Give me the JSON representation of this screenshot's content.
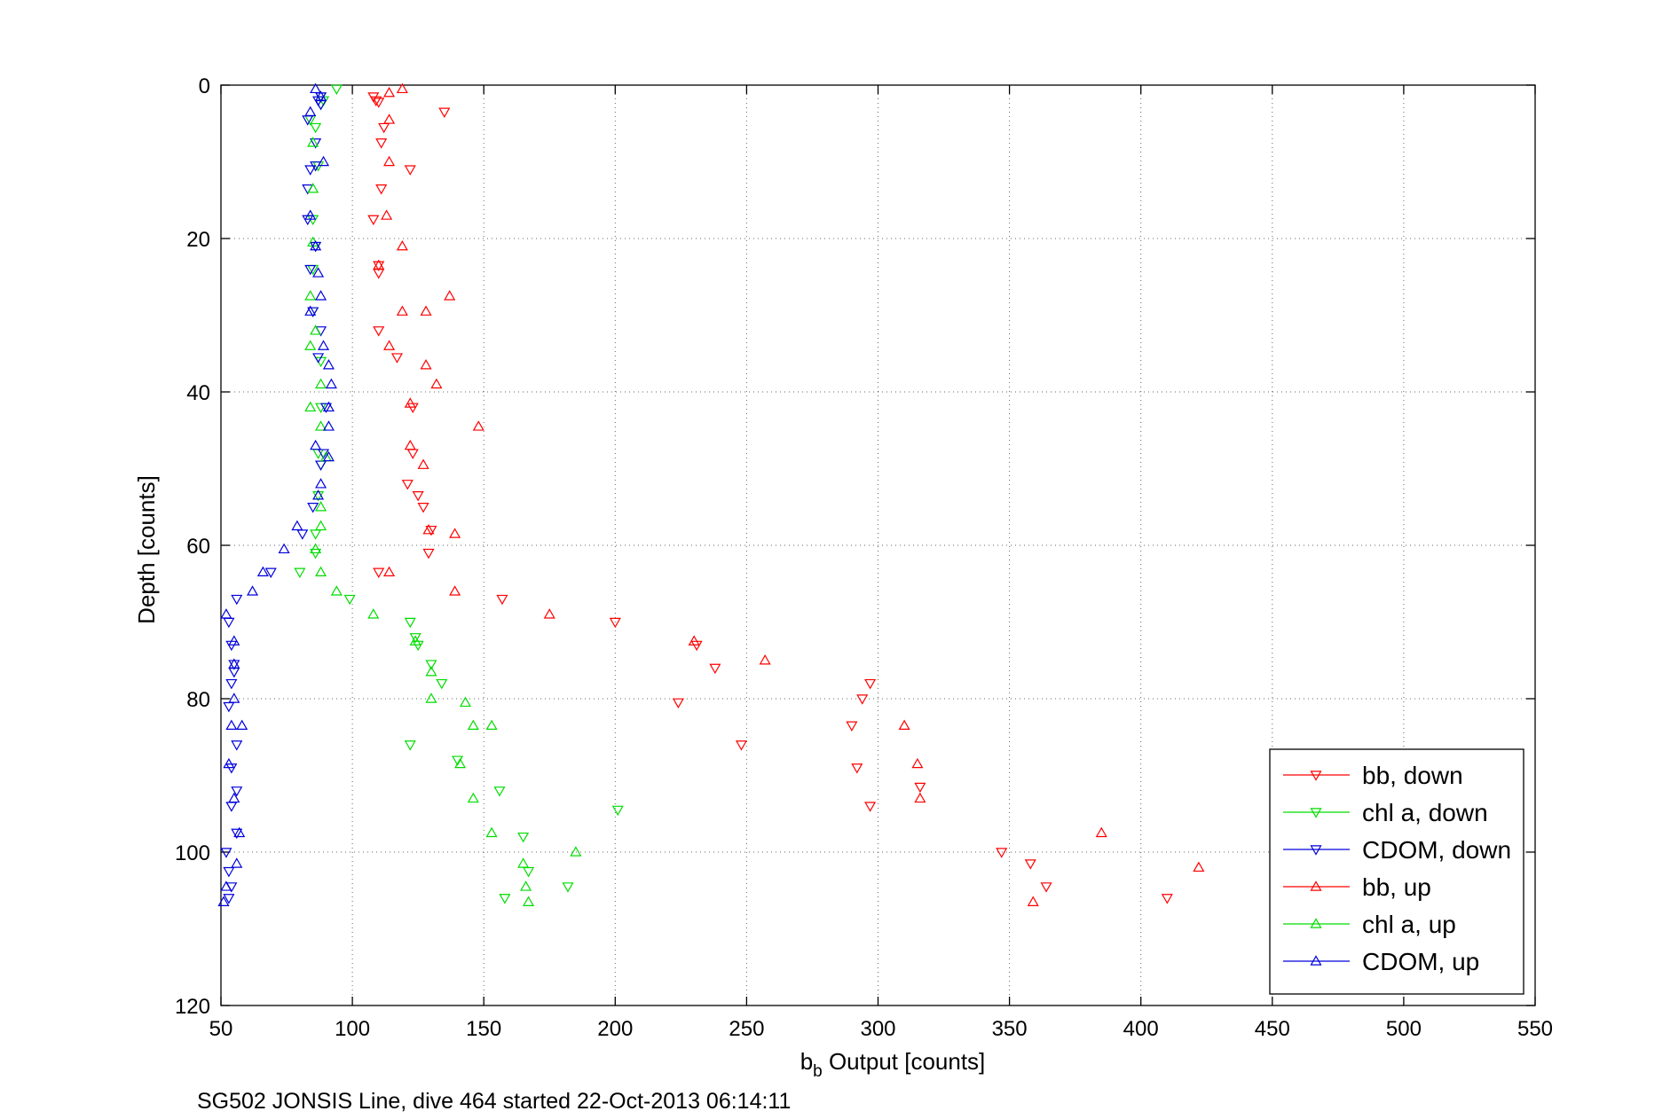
{
  "chart_data": {
    "type": "scatter",
    "xlabel_main": "b",
    "xlabel_sub": "b",
    "xlabel_rest": " Output [counts]",
    "ylabel": "Depth [counts]",
    "footer": "SG502 JONSIS Line, dive 464 started 22-Oct-2013 06:14:11",
    "xlim": [
      50,
      550
    ],
    "ylim": [
      0,
      120
    ],
    "y_reversed": true,
    "grid": true,
    "legend_position": "lower-right",
    "x_ticks": [
      "50",
      "100",
      "150",
      "200",
      "250",
      "300",
      "350",
      "400",
      "450",
      "500",
      "550"
    ],
    "y_ticks": [
      "0",
      "20",
      "40",
      "60",
      "80",
      "100",
      "120"
    ],
    "series": [
      {
        "name": "bb, down",
        "color": "#ff0000",
        "marker": "triangle-down",
        "points": [
          [
            108,
            1.5
          ],
          [
            109,
            2
          ],
          [
            110,
            2.2
          ],
          [
            135,
            3.5
          ],
          [
            112,
            5.5
          ],
          [
            111,
            7.5
          ],
          [
            122,
            11
          ],
          [
            111,
            13.5
          ],
          [
            108,
            17.5
          ],
          [
            110,
            23.5
          ],
          [
            110,
            24.5
          ],
          [
            110,
            32
          ],
          [
            117,
            35.5
          ],
          [
            123,
            42
          ],
          [
            123,
            48
          ],
          [
            121,
            52
          ],
          [
            125,
            53.5
          ],
          [
            127,
            55
          ],
          [
            130,
            58
          ],
          [
            129,
            61
          ],
          [
            110,
            63.5
          ],
          [
            157,
            67
          ],
          [
            200,
            70
          ],
          [
            231,
            73
          ],
          [
            238,
            76
          ],
          [
            224,
            80.5
          ],
          [
            248,
            86
          ],
          [
            297,
            78
          ],
          [
            294,
            80
          ],
          [
            290,
            83.5
          ],
          [
            292,
            89
          ],
          [
            316,
            91.5
          ],
          [
            297,
            94
          ],
          [
            358,
            101.5
          ],
          [
            347,
            100
          ],
          [
            364,
            104.5
          ],
          [
            410,
            106
          ]
        ]
      },
      {
        "name": "chl a, down",
        "color": "#00dd00",
        "marker": "triangle-down",
        "points": [
          [
            94,
            0.5
          ],
          [
            88,
            1.5
          ],
          [
            89,
            2
          ],
          [
            88,
            2.5
          ],
          [
            84,
            4.5
          ],
          [
            86,
            5.5
          ],
          [
            87,
            10.5
          ],
          [
            85,
            17.5
          ],
          [
            86,
            21
          ],
          [
            85,
            24
          ],
          [
            85,
            29.5
          ],
          [
            88,
            36
          ],
          [
            88,
            42
          ],
          [
            87,
            48
          ],
          [
            88,
            49.5
          ],
          [
            87,
            53.5
          ],
          [
            86,
            58.5
          ],
          [
            86,
            61
          ],
          [
            80,
            63.5
          ],
          [
            99,
            67
          ],
          [
            122,
            70
          ],
          [
            124,
            72
          ],
          [
            125,
            73
          ],
          [
            130,
            75.5
          ],
          [
            134,
            78
          ],
          [
            122,
            86
          ],
          [
            140,
            88
          ],
          [
            156,
            92
          ],
          [
            201,
            94.5
          ],
          [
            165,
            98
          ],
          [
            167,
            102.5
          ],
          [
            182,
            104.5
          ],
          [
            158,
            106
          ]
        ]
      },
      {
        "name": "CDOM, down",
        "color": "#0000dd",
        "marker": "triangle-down",
        "points": [
          [
            88,
            1.5
          ],
          [
            87,
            2
          ],
          [
            88,
            2.5
          ],
          [
            83,
            4.5
          ],
          [
            86,
            7.5
          ],
          [
            86,
            10.5
          ],
          [
            84,
            11
          ],
          [
            83,
            13.5
          ],
          [
            83,
            17.5
          ],
          [
            86,
            21
          ],
          [
            84,
            24
          ],
          [
            85,
            29.5
          ],
          [
            88,
            32
          ],
          [
            87,
            35.5
          ],
          [
            90,
            42
          ],
          [
            89,
            48
          ],
          [
            88,
            49.5
          ],
          [
            85,
            55
          ],
          [
            81,
            58.5
          ],
          [
            69,
            63.5
          ],
          [
            56,
            67
          ],
          [
            53,
            70
          ],
          [
            54,
            73
          ],
          [
            55,
            75.5
          ],
          [
            55,
            76.5
          ],
          [
            54,
            78
          ],
          [
            53,
            81
          ],
          [
            56,
            86
          ],
          [
            54,
            89
          ],
          [
            56,
            92
          ],
          [
            54,
            94
          ],
          [
            56,
            97.5
          ],
          [
            52,
            100
          ],
          [
            53,
            102.5
          ],
          [
            54,
            104.5
          ],
          [
            53,
            106
          ]
        ]
      },
      {
        "name": "bb, up",
        "color": "#ff0000",
        "marker": "triangle-up",
        "points": [
          [
            119,
            0.5
          ],
          [
            114,
            1
          ],
          [
            114,
            4.5
          ],
          [
            114,
            10
          ],
          [
            113,
            17
          ],
          [
            119,
            21
          ],
          [
            110,
            23.5
          ],
          [
            137,
            27.5
          ],
          [
            119,
            29.5
          ],
          [
            128,
            29.5
          ],
          [
            114,
            34
          ],
          [
            128,
            36.5
          ],
          [
            132,
            39
          ],
          [
            122,
            41.5
          ],
          [
            148,
            44.5
          ],
          [
            122,
            47
          ],
          [
            127,
            49.5
          ],
          [
            129,
            58
          ],
          [
            139,
            58.5
          ],
          [
            114,
            63.5
          ],
          [
            139,
            66
          ],
          [
            175,
            69
          ],
          [
            230,
            72.5
          ],
          [
            257,
            75
          ],
          [
            310,
            83.5
          ],
          [
            315,
            88.5
          ],
          [
            316,
            93
          ],
          [
            385,
            97.5
          ],
          [
            422,
            102
          ],
          [
            359,
            106.5
          ]
        ]
      },
      {
        "name": "chl a, up",
        "color": "#00dd00",
        "marker": "triangle-up",
        "points": [
          [
            85,
            7.5
          ],
          [
            85,
            13.5
          ],
          [
            85,
            20.5
          ],
          [
            84,
            27.5
          ],
          [
            86,
            32
          ],
          [
            84,
            34
          ],
          [
            88,
            39
          ],
          [
            84,
            42
          ],
          [
            88,
            44.5
          ],
          [
            90,
            48.5
          ],
          [
            88,
            55
          ],
          [
            88,
            57.5
          ],
          [
            86,
            60.5
          ],
          [
            88,
            63.5
          ],
          [
            94,
            66
          ],
          [
            108,
            69
          ],
          [
            124,
            72.5
          ],
          [
            130,
            76.5
          ],
          [
            130,
            80
          ],
          [
            143,
            80.5
          ],
          [
            146,
            83.5
          ],
          [
            153,
            83.5
          ],
          [
            141,
            88.5
          ],
          [
            146,
            93
          ],
          [
            153,
            97.5
          ],
          [
            185,
            100
          ],
          [
            165,
            101.5
          ],
          [
            166,
            104.5
          ],
          [
            167,
            106.5
          ]
        ]
      },
      {
        "name": "CDOM, up",
        "color": "#0000dd",
        "marker": "triangle-up",
        "points": [
          [
            86,
            0.5
          ],
          [
            88,
            1.5
          ],
          [
            84,
            3.5
          ],
          [
            89,
            10
          ],
          [
            84,
            17
          ],
          [
            86,
            21
          ],
          [
            87,
            24.5
          ],
          [
            88,
            27.5
          ],
          [
            84,
            29.5
          ],
          [
            89,
            34
          ],
          [
            91,
            36.5
          ],
          [
            92,
            39
          ],
          [
            91,
            42
          ],
          [
            91,
            44.5
          ],
          [
            86,
            47
          ],
          [
            91,
            48.5
          ],
          [
            88,
            52
          ],
          [
            87,
            53.5
          ],
          [
            79,
            57.5
          ],
          [
            74,
            60.5
          ],
          [
            66,
            63.5
          ],
          [
            62,
            66
          ],
          [
            52,
            69
          ],
          [
            55,
            72.5
          ],
          [
            55,
            75.5
          ],
          [
            55,
            80
          ],
          [
            54,
            83.5
          ],
          [
            58,
            83.5
          ],
          [
            53,
            88.5
          ],
          [
            55,
            93
          ],
          [
            57,
            97.5
          ],
          [
            56,
            101.5
          ],
          [
            52,
            104.5
          ],
          [
            51,
            106.5
          ]
        ]
      }
    ]
  }
}
